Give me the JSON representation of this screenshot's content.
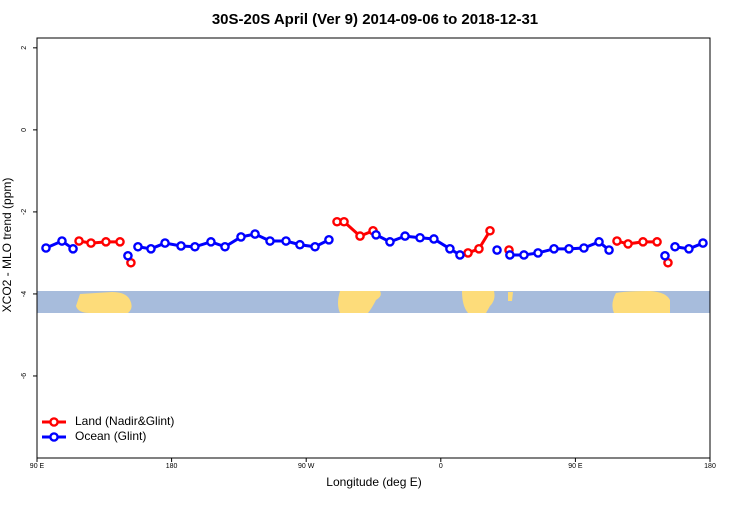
{
  "chart_data": {
    "type": "line",
    "title": "30S-20S April (Ver 9)   2014-09-06 to 2018-12-31",
    "x_label": "Longitude (deg E)",
    "y_label": "XCO2 - MLO trend (ppm)",
    "x": [
      96.0,
      106.7,
      114.1,
      118.1,
      126.1,
      136.1,
      145.5,
      150.8,
      152.8,
      157.5,
      166.2,
      175.6,
      186.3,
      195.6,
      206.3,
      215.7,
      226.4,
      235.8,
      245.8,
      256.5,
      265.8,
      275.9,
      285.2,
      290.6,
      295.3,
      306.0,
      314.7,
      316.7,
      326.0,
      336.1,
      346.1,
      355.4,
      366.1,
      372.8,
      378.2,
      385.5,
      392.9,
      397.6,
      405.6,
      406.2,
      415.6,
      425.0,
      435.7,
      445.7,
      455.7,
      465.8,
      472.5,
      477.8,
      485.2,
      495.2,
      504.6,
      509.9,
      511.9,
      516.6,
      525.9,
      535.3
    ],
    "series": [
      {
        "name": "Land (Nadir&Glint)",
        "color": "#ff0000",
        "values": [
          null,
          null,
          null,
          -2.71,
          -2.76,
          -2.73,
          -2.73,
          null,
          -3.24,
          null,
          null,
          null,
          null,
          null,
          null,
          null,
          null,
          null,
          null,
          null,
          null,
          null,
          null,
          -2.24,
          -2.24,
          -2.59,
          -2.46,
          null,
          null,
          null,
          null,
          null,
          null,
          null,
          -3.0,
          -2.9,
          -2.46,
          null,
          -2.93,
          null,
          null,
          null,
          null,
          null,
          null,
          null,
          null,
          -2.71,
          -2.78,
          -2.73,
          -2.73,
          null,
          -3.24,
          null,
          null,
          null
        ]
      },
      {
        "name": "Ocean (Glint)",
        "color": "#0000ff",
        "values": [
          -2.88,
          -2.71,
          -2.9,
          null,
          null,
          null,
          null,
          -3.07,
          null,
          -2.85,
          -2.9,
          -2.76,
          -2.83,
          -2.85,
          -2.73,
          -2.85,
          -2.61,
          -2.54,
          -2.71,
          -2.71,
          -2.8,
          -2.85,
          -2.68,
          null,
          null,
          null,
          null,
          -2.56,
          -2.73,
          -2.59,
          -2.63,
          -2.66,
          -2.9,
          -3.05,
          null,
          null,
          null,
          -2.93,
          null,
          -3.05,
          -3.05,
          -3.0,
          -2.9,
          -2.9,
          -2.88,
          -2.73,
          -2.93,
          null,
          null,
          null,
          null,
          -3.07,
          null,
          -2.85,
          -2.9,
          -2.76
        ]
      }
    ],
    "xlim": [
      90,
      540
    ],
    "xticks": [
      {
        "value": 90,
        "label": "90 E"
      },
      180,
      {
        "value": 270,
        "label": "90 W"
      },
      {
        "value": 360,
        "label": "0"
      },
      {
        "value": 450,
        "label": "90 E"
      },
      {
        "value": 540,
        "label": "180"
      }
    ],
    "ylim": [
      -8,
      2.24
    ],
    "yticks": [
      2,
      0,
      -2,
      -4,
      -6
    ],
    "legend": "bottom-left"
  }
}
